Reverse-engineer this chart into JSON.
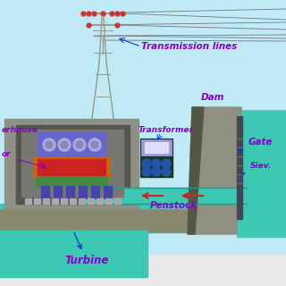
{
  "bg_sky": "#c0eaf5",
  "bg_water": "#3dc8b4",
  "bg_water_dark": "#2aaa98",
  "powerhouse_outer": "#909085",
  "powerhouse_inner_dark": "#555550",
  "powerhouse_inner_mid": "#787870",
  "generator_blue_top": "#6666cc",
  "generator_red": "#cc2222",
  "generator_green": "#448844",
  "generator_col_blue": "#4444aa",
  "generator_base": "#aaaaaa",
  "dam_body": "#909080",
  "dam_face_dark": "#555545",
  "gate_color": "#444455",
  "ground_color": "#888870",
  "tower_color": "#999988",
  "line_color": "#777777",
  "label_color": "#8800cc",
  "arrow_blue": "#0044cc",
  "penstock_color": "#3dc8b4",
  "penstock_border": "#229988",
  "red_arrow": "#cc2222",
  "transformer_body": "#1a3a1a",
  "transformer_coil": "#2255aa",
  "transformer_box": "#9999cc",
  "white_bg": "#ffffff",
  "labels": {
    "transmission_lines": "Transmission lines",
    "dam": "Dam",
    "transformer": "Transformer",
    "gate": "Gate",
    "sieve": "Siev.",
    "penstock": "Penstock",
    "turbine": "Turbine",
    "powerhouse": "erhouse",
    "rotor": "or"
  }
}
